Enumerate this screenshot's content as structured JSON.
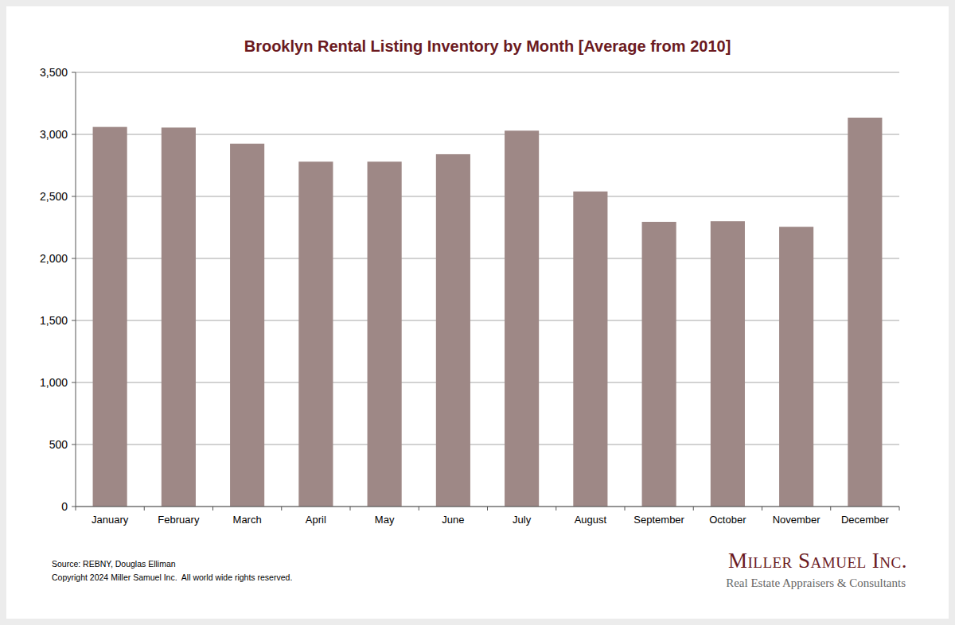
{
  "chart_data": {
    "type": "bar",
    "title": "Brooklyn Rental Listing Inventory by Month [Average from 2010]",
    "categories": [
      "January",
      "February",
      "March",
      "April",
      "May",
      "June",
      "July",
      "August",
      "September",
      "October",
      "November",
      "December"
    ],
    "values": [
      3060,
      3055,
      2925,
      2780,
      2780,
      2840,
      3030,
      2540,
      2295,
      2300,
      2255,
      3135
    ],
    "color": "#9e8886",
    "ylim": [
      0,
      3500
    ],
    "yticks": [
      0,
      500,
      {
        "value": 1000,
        "label": "1,000"
      },
      {
        "value": 1500,
        "label": "1,500"
      },
      {
        "value": 2000,
        "label": "2,000"
      },
      {
        "value": 2500,
        "label": "2,500"
      },
      {
        "value": 3000,
        "label": "3,000"
      },
      {
        "value": 3500,
        "label": "3,500"
      }
    ],
    "grid": true
  },
  "footer": {
    "source": "Source: REBNY, Douglas Elliman",
    "copyright": "Copyright 2024 Miller Samuel Inc.  All world wide rights reserved.",
    "logo_name": "Miller Samuel Inc.",
    "logo_tagline": "Real Estate Appraisers & Consultants"
  }
}
